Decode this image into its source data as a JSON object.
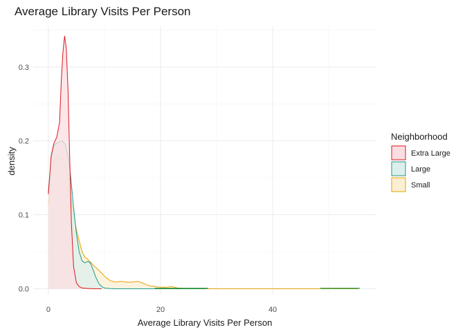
{
  "chart_data": {
    "type": "area",
    "title": "Average Library Visits Per Person",
    "xlabel": "Average Library Visits Per Person",
    "ylabel": "density",
    "xlim": [
      -2.7,
      58.5
    ],
    "ylim": [
      -0.008,
      0.355
    ],
    "x_ticks": [
      0,
      20,
      40
    ],
    "y_ticks": [
      0.0,
      0.1,
      0.2,
      0.3
    ],
    "x_tick_labels": [
      "0",
      "20",
      "40"
    ],
    "y_tick_labels": [
      "0.0",
      "0.1",
      "0.2",
      "0.3"
    ],
    "grid": true,
    "legend_title": "Neighborhood",
    "legend_position": "right",
    "series": [
      {
        "name": "Small",
        "color": "#E6A100",
        "fill": "#FBEFD3",
        "points": [
          [
            0,
            0.115
          ],
          [
            0.5,
            0.15
          ],
          [
            1,
            0.172
          ],
          [
            1.5,
            0.18
          ],
          [
            2,
            0.179
          ],
          [
            2.5,
            0.175
          ],
          [
            3,
            0.166
          ],
          [
            3.5,
            0.15
          ],
          [
            4,
            0.125
          ],
          [
            4.5,
            0.1
          ],
          [
            5,
            0.08
          ],
          [
            5.5,
            0.065
          ],
          [
            6,
            0.05
          ],
          [
            6.5,
            0.043
          ],
          [
            7,
            0.04
          ],
          [
            7.5,
            0.036
          ],
          [
            8,
            0.032
          ],
          [
            9,
            0.025
          ],
          [
            10,
            0.017
          ],
          [
            11,
            0.011
          ],
          [
            12,
            0.009
          ],
          [
            13,
            0.01
          ],
          [
            14,
            0.009
          ],
          [
            15,
            0.009
          ],
          [
            16,
            0.01
          ],
          [
            17,
            0.007
          ],
          [
            18,
            0.004
          ],
          [
            19,
            0.003
          ],
          [
            20,
            0.002
          ],
          [
            21,
            0.002
          ],
          [
            22,
            0.003
          ],
          [
            23,
            0.001
          ],
          [
            24,
            0.0005
          ],
          [
            26,
            0.0002
          ],
          [
            30,
            0.0001
          ],
          [
            40,
            0.0001
          ],
          [
            48,
            0.0001
          ],
          [
            50,
            0.0003
          ],
          [
            51,
            0.0001
          ],
          [
            55,
            0
          ]
        ]
      },
      {
        "name": "Large",
        "color": "#1A9A8A",
        "fill": "#DDEFEC",
        "points": [
          [
            0,
            0.13
          ],
          [
            0.5,
            0.175
          ],
          [
            1,
            0.194
          ],
          [
            1.5,
            0.197
          ],
          [
            2,
            0.198
          ],
          [
            2.5,
            0.2
          ],
          [
            3,
            0.195
          ],
          [
            3.5,
            0.18
          ],
          [
            4,
            0.15
          ],
          [
            4.5,
            0.11
          ],
          [
            5,
            0.075
          ],
          [
            5.5,
            0.05
          ],
          [
            6,
            0.038
          ],
          [
            6.5,
            0.035
          ],
          [
            7,
            0.037
          ],
          [
            7.5,
            0.035
          ],
          [
            8,
            0.025
          ],
          [
            8.5,
            0.015
          ],
          [
            9,
            0.007
          ],
          [
            9.5,
            0.003
          ],
          [
            10,
            0.001
          ],
          [
            11,
            0.0003
          ],
          [
            12,
            0
          ],
          [
            28,
            0
          ]
        ]
      },
      {
        "name": "Extra Large",
        "color": "#D7191C",
        "fill": "#FCDDE1",
        "points": [
          [
            0,
            0.128
          ],
          [
            0.5,
            0.18
          ],
          [
            1,
            0.197
          ],
          [
            1.5,
            0.205
          ],
          [
            2,
            0.225
          ],
          [
            2.3,
            0.28
          ],
          [
            2.6,
            0.32
          ],
          [
            2.9,
            0.342
          ],
          [
            3.2,
            0.325
          ],
          [
            3.5,
            0.27
          ],
          [
            3.8,
            0.18
          ],
          [
            4.1,
            0.09
          ],
          [
            4.5,
            0.03
          ],
          [
            5,
            0.008
          ],
          [
            5.5,
            0.003
          ],
          [
            6,
            0.001
          ],
          [
            7,
            0.0003
          ],
          [
            8,
            0.0001
          ],
          [
            9.5,
            0
          ]
        ]
      }
    ],
    "tail_segments": [
      {
        "color": "#1E8B1E",
        "from": 19,
        "to": 28.5
      },
      {
        "color": "#1E8B1E",
        "from": 48.5,
        "to": 55.5
      }
    ]
  }
}
